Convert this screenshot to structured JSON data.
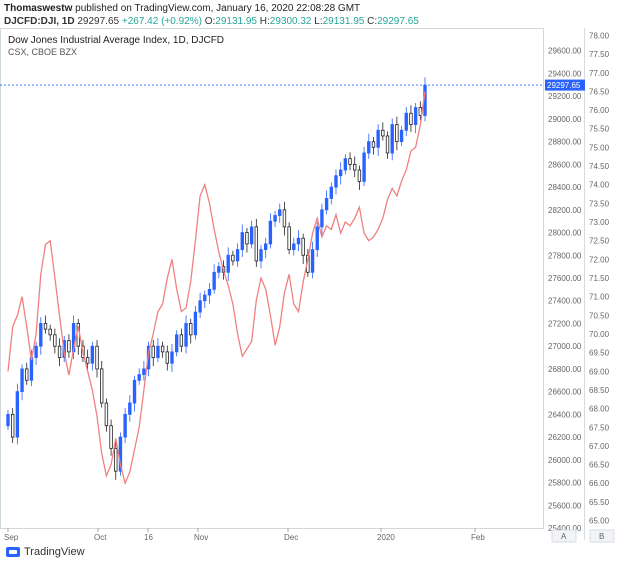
{
  "header": {
    "author": "Thomaswestw",
    "published": "published on TradingView.com, January 16, 2020 22:08:28 GMT"
  },
  "symbol_line": {
    "symbol": "DJCFD:DJI, 1D",
    "price": "29297.65",
    "change": "+267.42 (+0.92%)",
    "o_label": "O:",
    "o": "29131.95",
    "h_label": "H:",
    "h": "29300.32",
    "l_label": "L:",
    "l": "29131.95",
    "c_label": "C:",
    "c": "29297.65"
  },
  "legend": {
    "title": "Dow Jones Industrial Average Index, 1D, DJCFD",
    "sub": "CSX, CBOE BZX"
  },
  "axis_buttons": {
    "a": "A",
    "b": "B"
  },
  "footer": {
    "brand": "TradingView"
  },
  "colors": {
    "up": "#2962ff",
    "down": "#222222",
    "overlay": "#f08080",
    "last_price_box": "#2962ff"
  },
  "chart_data": {
    "type": "candlestick",
    "title": "Dow Jones Industrial Average Index, 1D, DJCFD",
    "overlay_name": "CSX, CBOE BZX",
    "x_labels": [
      "Sep",
      "Oct",
      "16",
      "Nov",
      "Dec",
      "2020",
      "Feb"
    ],
    "y_left_ticks": [
      29600,
      29400,
      29200,
      29000,
      28800,
      28600,
      28400,
      28200,
      28000,
      27800,
      27600,
      27400,
      27200,
      27000,
      26800,
      26600,
      26400,
      26200,
      26000,
      25800,
      25600,
      25400
    ],
    "y_left_range": [
      25400,
      29800
    ],
    "y_right_ticks": [
      78.0,
      77.5,
      77.0,
      76.5,
      76.0,
      75.5,
      75.0,
      74.5,
      74.0,
      73.5,
      73.0,
      72.5,
      72.0,
      71.5,
      71.0,
      70.5,
      70.0,
      69.5,
      69.0,
      68.5,
      68.0,
      67.5,
      67.0,
      66.5,
      66.0,
      65.5,
      65.0
    ],
    "y_right_range": [
      64.8,
      78.2
    ],
    "last_price": 29297.65,
    "closes": [
      26400,
      26200,
      26600,
      26800,
      26700,
      26900,
      27000,
      27200,
      27150,
      27100,
      27000,
      26900,
      27050,
      26950,
      27200,
      27000,
      26900,
      26850,
      27000,
      26800,
      26500,
      26300,
      26100,
      25900,
      26200,
      26400,
      26500,
      26700,
      26750,
      26800,
      27000,
      26900,
      27000,
      26950,
      26850,
      26950,
      27100,
      27000,
      27200,
      27100,
      27300,
      27400,
      27450,
      27500,
      27650,
      27700,
      27650,
      27800,
      27750,
      27850,
      28000,
      27900,
      28050,
      27750,
      27850,
      27900,
      28100,
      28150,
      28200,
      28050,
      27850,
      27900,
      27950,
      27800,
      27650,
      27850,
      28050,
      28200,
      28300,
      28400,
      28500,
      28550,
      28650,
      28600,
      28550,
      28450,
      28700,
      28800,
      28750,
      28900,
      28850,
      28700,
      28950,
      28800,
      28900,
      29050,
      28950,
      29100,
      29030,
      29297
    ]
  }
}
